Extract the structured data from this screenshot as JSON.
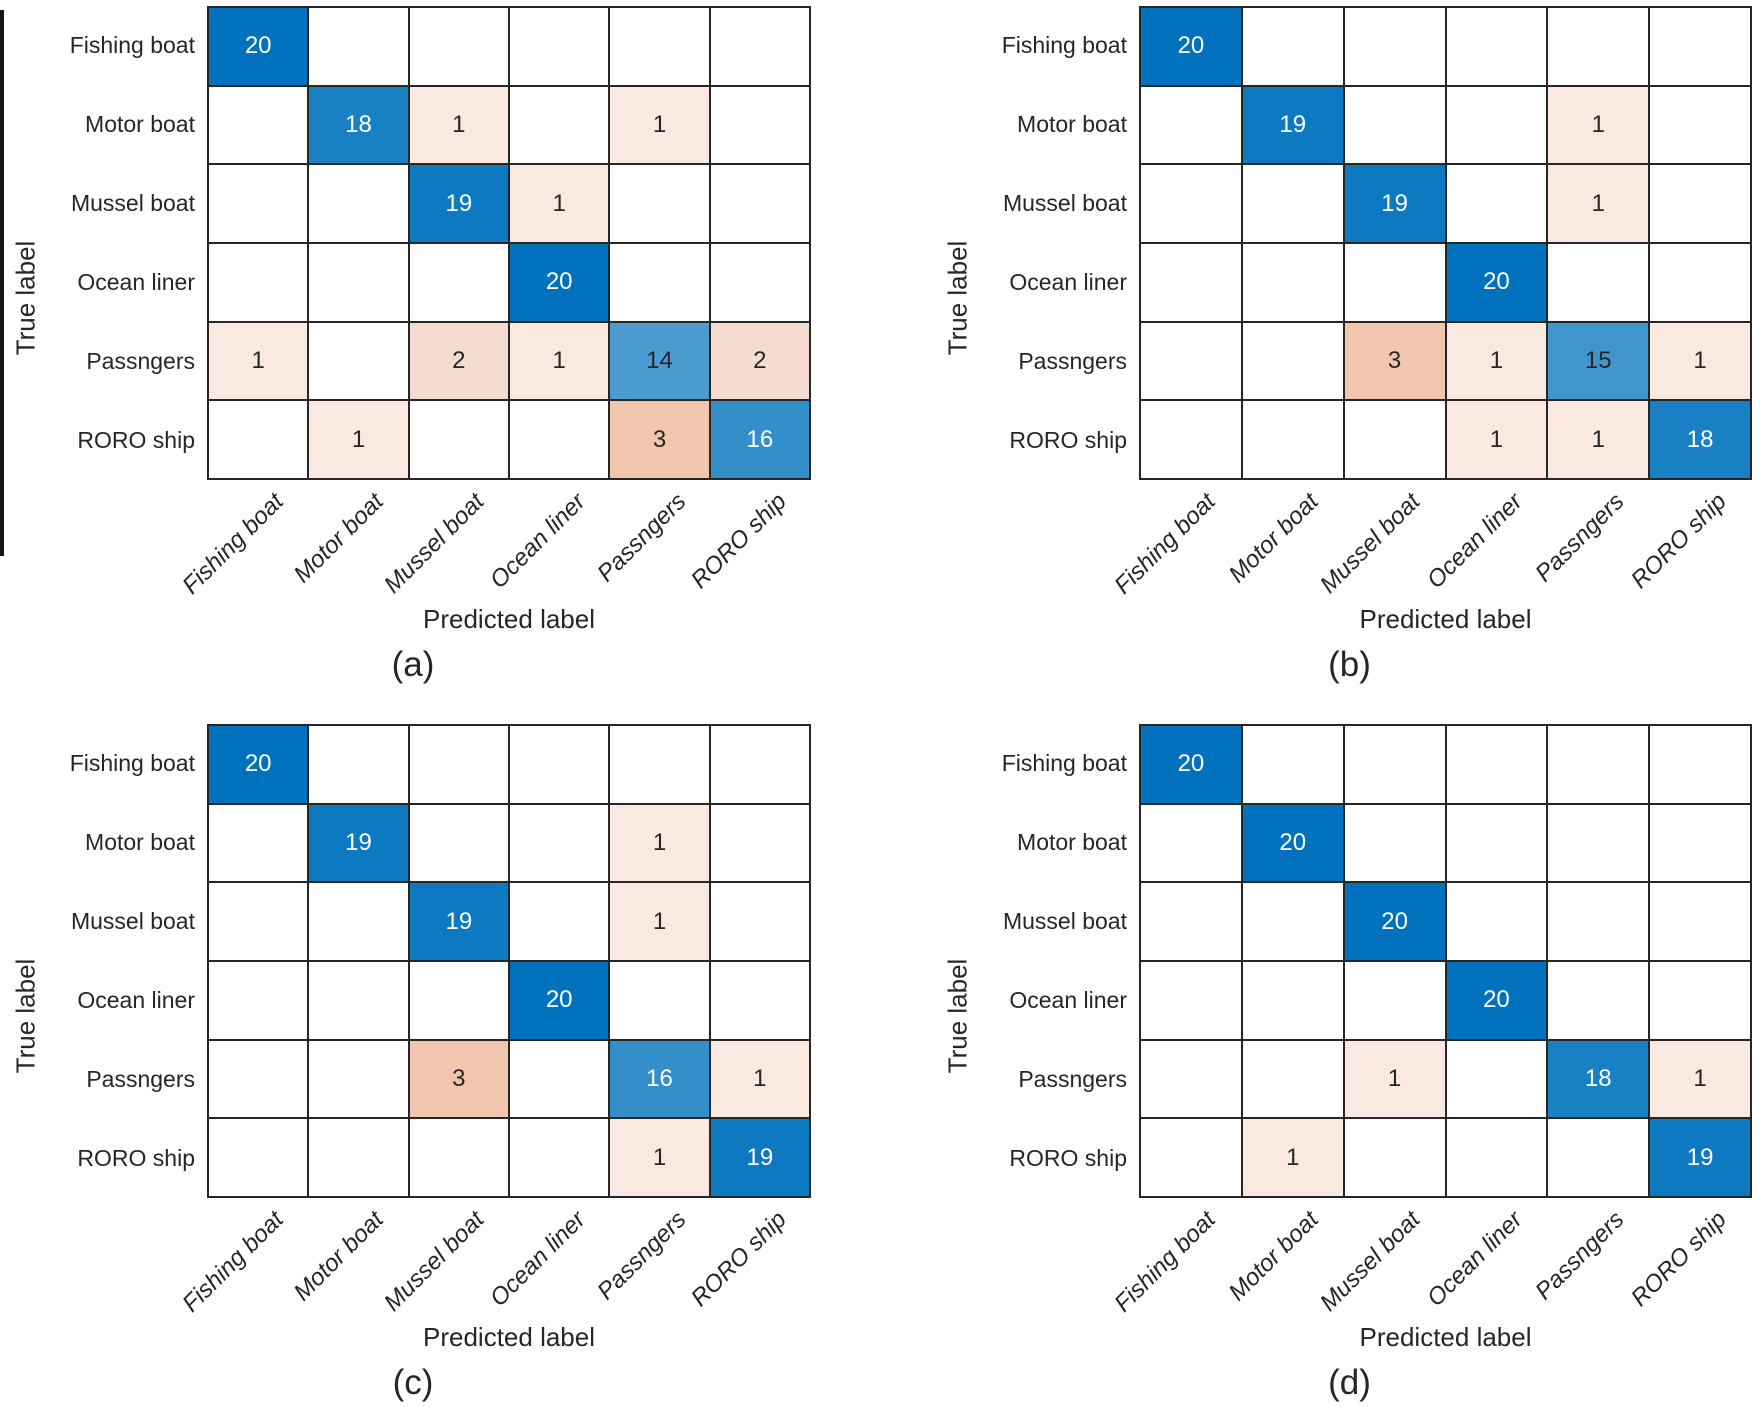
{
  "figure": {
    "background": "#ffffff",
    "text_color": "#262626",
    "grid_line_color": "#262626"
  },
  "cell_style": {
    "zero_color": "#ffffff",
    "diagonal_colors": {
      "14": "#4D9CD1",
      "15": "#4095CE",
      "16": "#338ECA",
      "18": "#1980C4",
      "19": "#0D79C0",
      "20": "#0072BD"
    },
    "off_diagonal_colors": {
      "1": "#FAE9E1",
      "2": "#F6DCD0",
      "3": "#F2C5AE"
    },
    "white_text_min": 16,
    "dark_text_color": "#262626",
    "light_text_color": "#ffffff"
  },
  "chart_data": [
    {
      "type": "heatmap",
      "caption": "(a)",
      "xlabel": "Predicted label",
      "ylabel": "True label",
      "x_categories": [
        "Fishing boat",
        "Motor boat",
        "Mussel boat",
        "Ocean liner",
        "Passngers",
        "RORO ship"
      ],
      "y_categories": [
        "Fishing boat",
        "Motor boat",
        "Mussel boat",
        "Ocean liner",
        "Passngers",
        "RORO ship"
      ],
      "matrix": [
        [
          20,
          0,
          0,
          0,
          0,
          0
        ],
        [
          0,
          18,
          1,
          0,
          1,
          0
        ],
        [
          0,
          0,
          19,
          1,
          0,
          0
        ],
        [
          0,
          0,
          0,
          20,
          0,
          0
        ],
        [
          1,
          0,
          2,
          1,
          14,
          2
        ],
        [
          0,
          1,
          0,
          0,
          3,
          16
        ]
      ]
    },
    {
      "type": "heatmap",
      "caption": "(b)",
      "xlabel": "Predicted label",
      "ylabel": "True label",
      "x_categories": [
        "Fishing boat",
        "Motor boat",
        "Mussel boat",
        "Ocean liner",
        "Passngers",
        "RORO ship"
      ],
      "y_categories": [
        "Fishing boat",
        "Motor boat",
        "Mussel boat",
        "Ocean liner",
        "Passngers",
        "RORO ship"
      ],
      "matrix": [
        [
          20,
          0,
          0,
          0,
          0,
          0
        ],
        [
          0,
          19,
          0,
          0,
          1,
          0
        ],
        [
          0,
          0,
          19,
          0,
          1,
          0
        ],
        [
          0,
          0,
          0,
          20,
          0,
          0
        ],
        [
          0,
          0,
          3,
          1,
          15,
          1
        ],
        [
          0,
          0,
          0,
          1,
          1,
          18
        ]
      ]
    },
    {
      "type": "heatmap",
      "caption": "(c)",
      "xlabel": "Predicted label",
      "ylabel": "True label",
      "x_categories": [
        "Fishing boat",
        "Motor boat",
        "Mussel boat",
        "Ocean liner",
        "Passngers",
        "RORO ship"
      ],
      "y_categories": [
        "Fishing boat",
        "Motor boat",
        "Mussel boat",
        "Ocean liner",
        "Passngers",
        "RORO ship"
      ],
      "matrix": [
        [
          20,
          0,
          0,
          0,
          0,
          0
        ],
        [
          0,
          19,
          0,
          0,
          1,
          0
        ],
        [
          0,
          0,
          19,
          0,
          1,
          0
        ],
        [
          0,
          0,
          0,
          20,
          0,
          0
        ],
        [
          0,
          0,
          3,
          0,
          16,
          1
        ],
        [
          0,
          0,
          0,
          0,
          1,
          19
        ]
      ]
    },
    {
      "type": "heatmap",
      "caption": "(d)",
      "xlabel": "Predicted label",
      "ylabel": "True label",
      "x_categories": [
        "Fishing boat",
        "Motor boat",
        "Mussel boat",
        "Ocean liner",
        "Passngers",
        "RORO ship"
      ],
      "y_categories": [
        "Fishing boat",
        "Motor boat",
        "Mussel boat",
        "Ocean liner",
        "Passngers",
        "RORO ship"
      ],
      "matrix": [
        [
          20,
          0,
          0,
          0,
          0,
          0
        ],
        [
          0,
          20,
          0,
          0,
          0,
          0
        ],
        [
          0,
          0,
          20,
          0,
          0,
          0
        ],
        [
          0,
          0,
          0,
          20,
          0,
          0
        ],
        [
          0,
          0,
          1,
          0,
          18,
          1
        ],
        [
          0,
          1,
          0,
          0,
          0,
          19
        ]
      ]
    }
  ]
}
